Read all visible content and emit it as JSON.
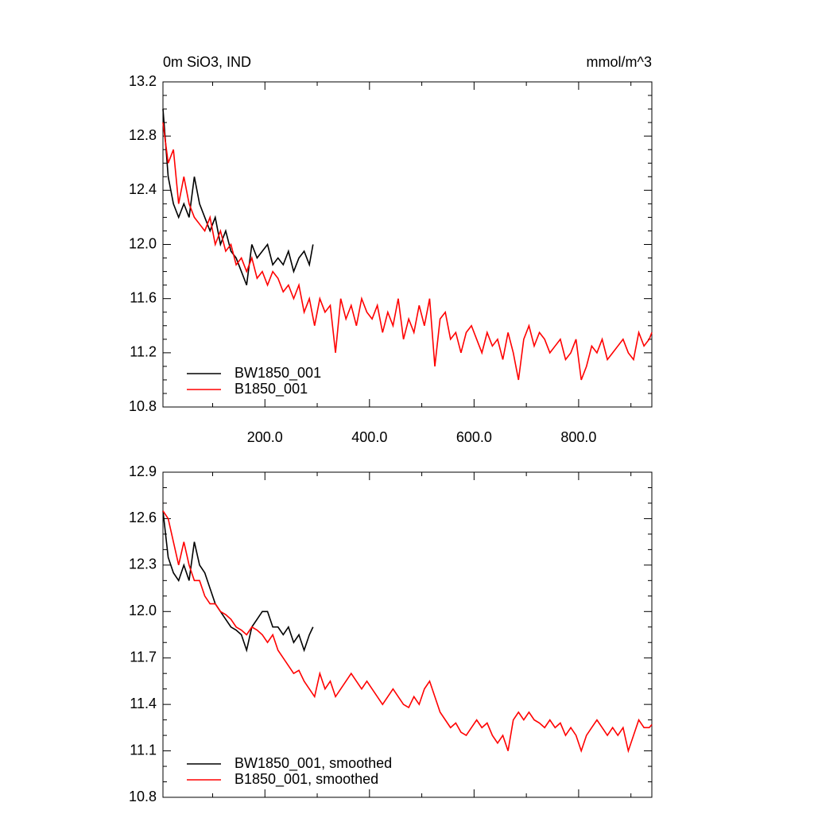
{
  "chart_data": [
    {
      "type": "line",
      "title": "0m SiO3, IND",
      "units": "mmol/m^3",
      "xlim": [
        5,
        940
      ],
      "xticks": [
        {
          "value": 200,
          "label": "200.0"
        },
        {
          "value": 400,
          "label": "400.0"
        },
        {
          "value": 600,
          "label": "600.0"
        },
        {
          "value": 800,
          "label": "800.0"
        }
      ],
      "xtick_labels": true,
      "ylim": [
        10.8,
        13.2
      ],
      "yticks": [
        10.8,
        11.2,
        11.6,
        {
          "value": 12.0,
          "label": "12.0"
        },
        12.4,
        12.8,
        13.2
      ],
      "legend": "lower left",
      "series": [
        {
          "name": "BW1850_001",
          "color": "#000000",
          "x": [
            5,
            15,
            25,
            35,
            45,
            55,
            65,
            75,
            85,
            95,
            105,
            115,
            125,
            135,
            145,
            155,
            165,
            175,
            185,
            195,
            205,
            215,
            225,
            235,
            245,
            255,
            265,
            275,
            285,
            292
          ],
          "values": [
            13.0,
            12.5,
            12.3,
            12.2,
            12.3,
            12.2,
            12.5,
            12.3,
            12.2,
            12.1,
            12.2,
            12.0,
            12.1,
            11.95,
            11.9,
            11.8,
            11.7,
            12.0,
            11.9,
            11.95,
            12.0,
            11.85,
            11.9,
            11.85,
            11.95,
            11.8,
            11.9,
            11.95,
            11.85,
            12.0
          ]
        },
        {
          "name": "B1850_001",
          "color": "#ff0000",
          "x": [
            5,
            15,
            25,
            35,
            45,
            55,
            65,
            75,
            85,
            95,
            105,
            115,
            125,
            135,
            145,
            155,
            165,
            175,
            185,
            195,
            205,
            215,
            225,
            235,
            245,
            255,
            265,
            275,
            285,
            295,
            305,
            315,
            325,
            335,
            345,
            355,
            365,
            375,
            385,
            395,
            405,
            415,
            425,
            435,
            445,
            455,
            465,
            475,
            485,
            495,
            505,
            515,
            525,
            535,
            545,
            555,
            565,
            575,
            585,
            595,
            605,
            615,
            625,
            635,
            645,
            655,
            665,
            675,
            685,
            695,
            705,
            715,
            725,
            735,
            745,
            755,
            765,
            775,
            785,
            795,
            805,
            815,
            825,
            835,
            845,
            855,
            865,
            875,
            885,
            895,
            905,
            915,
            925,
            935,
            940
          ],
          "values": [
            12.9,
            12.6,
            12.7,
            12.3,
            12.5,
            12.3,
            12.2,
            12.15,
            12.1,
            12.2,
            12.0,
            12.1,
            11.95,
            12.0,
            11.85,
            11.9,
            11.8,
            11.9,
            11.75,
            11.8,
            11.7,
            11.8,
            11.75,
            11.65,
            11.7,
            11.6,
            11.7,
            11.5,
            11.6,
            11.4,
            11.6,
            11.5,
            11.55,
            11.2,
            11.6,
            11.45,
            11.55,
            11.4,
            11.6,
            11.5,
            11.45,
            11.55,
            11.35,
            11.5,
            11.4,
            11.6,
            11.3,
            11.45,
            11.35,
            11.55,
            11.4,
            11.6,
            11.1,
            11.45,
            11.5,
            11.3,
            11.35,
            11.2,
            11.35,
            11.4,
            11.3,
            11.2,
            11.35,
            11.25,
            11.3,
            11.15,
            11.35,
            11.2,
            11.0,
            11.3,
            11.4,
            11.25,
            11.35,
            11.3,
            11.2,
            11.25,
            11.3,
            11.15,
            11.2,
            11.3,
            11.0,
            11.1,
            11.25,
            11.2,
            11.3,
            11.15,
            11.2,
            11.25,
            11.3,
            11.2,
            11.15,
            11.35,
            11.25,
            11.3,
            11.35
          ]
        }
      ]
    },
    {
      "type": "line",
      "xlim": [
        5,
        940
      ],
      "xticks": [
        200,
        400,
        600,
        800
      ],
      "xtick_labels": false,
      "ylim": [
        10.8,
        12.9
      ],
      "yticks": [
        10.8,
        11.1,
        11.4,
        11.7,
        {
          "value": 12.0,
          "label": "12.0"
        },
        12.3,
        12.6,
        12.9
      ],
      "legend": "lower left",
      "series": [
        {
          "name": "BW1850_001, smoothed",
          "color": "#000000",
          "x": [
            5,
            15,
            25,
            35,
            45,
            55,
            65,
            75,
            85,
            95,
            105,
            115,
            125,
            135,
            145,
            155,
            165,
            175,
            185,
            195,
            205,
            215,
            225,
            235,
            245,
            255,
            265,
            275,
            285,
            292
          ],
          "values": [
            12.65,
            12.35,
            12.25,
            12.2,
            12.3,
            12.2,
            12.45,
            12.3,
            12.25,
            12.15,
            12.05,
            12.0,
            11.95,
            11.9,
            11.88,
            11.85,
            11.75,
            11.9,
            11.95,
            12.0,
            12.0,
            11.9,
            11.9,
            11.85,
            11.9,
            11.8,
            11.85,
            11.75,
            11.85,
            11.9
          ]
        },
        {
          "name": "B1850_001, smoothed",
          "color": "#ff0000",
          "x": [
            5,
            15,
            25,
            35,
            45,
            55,
            65,
            75,
            85,
            95,
            105,
            115,
            125,
            135,
            145,
            155,
            165,
            175,
            185,
            195,
            205,
            215,
            225,
            235,
            245,
            255,
            265,
            275,
            285,
            295,
            305,
            315,
            325,
            335,
            345,
            355,
            365,
            375,
            385,
            395,
            405,
            415,
            425,
            435,
            445,
            455,
            465,
            475,
            485,
            495,
            505,
            515,
            525,
            535,
            545,
            555,
            565,
            575,
            585,
            595,
            605,
            615,
            625,
            635,
            645,
            655,
            665,
            675,
            685,
            695,
            705,
            715,
            725,
            735,
            745,
            755,
            765,
            775,
            785,
            795,
            805,
            815,
            825,
            835,
            845,
            855,
            865,
            875,
            885,
            895,
            905,
            915,
            925,
            935,
            940
          ],
          "values": [
            12.65,
            12.6,
            12.45,
            12.3,
            12.45,
            12.3,
            12.2,
            12.2,
            12.1,
            12.05,
            12.05,
            12.0,
            11.98,
            11.95,
            11.9,
            11.88,
            11.85,
            11.9,
            11.88,
            11.85,
            11.8,
            11.85,
            11.75,
            11.7,
            11.65,
            11.6,
            11.62,
            11.55,
            11.5,
            11.45,
            11.6,
            11.5,
            11.55,
            11.45,
            11.5,
            11.55,
            11.6,
            11.55,
            11.5,
            11.55,
            11.5,
            11.45,
            11.4,
            11.45,
            11.5,
            11.45,
            11.4,
            11.38,
            11.45,
            11.4,
            11.5,
            11.55,
            11.45,
            11.35,
            11.3,
            11.25,
            11.28,
            11.22,
            11.2,
            11.25,
            11.3,
            11.25,
            11.28,
            11.2,
            11.15,
            11.2,
            11.1,
            11.3,
            11.35,
            11.3,
            11.35,
            11.3,
            11.28,
            11.25,
            11.3,
            11.25,
            11.28,
            11.2,
            11.25,
            11.2,
            11.1,
            11.2,
            11.25,
            11.3,
            11.25,
            11.2,
            11.25,
            11.2,
            11.25,
            11.1,
            11.2,
            11.3,
            11.25,
            11.25,
            11.27
          ]
        }
      ]
    }
  ]
}
